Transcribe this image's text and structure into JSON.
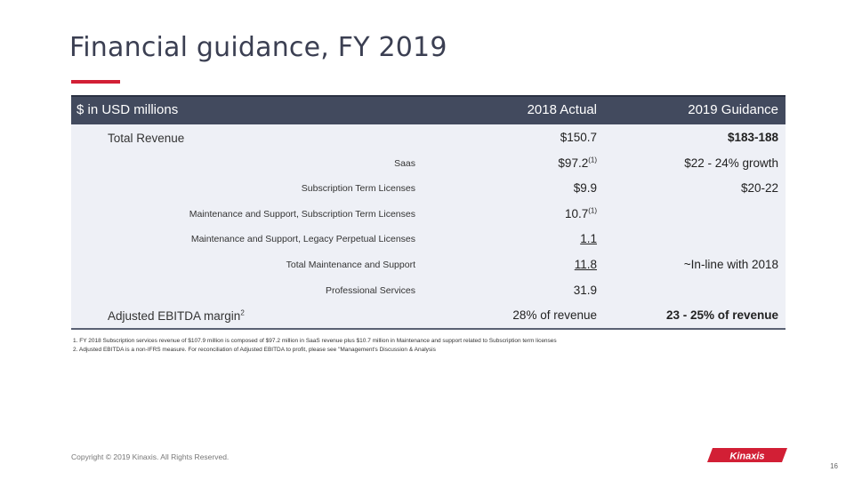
{
  "slide": {
    "title": "Financial guidance, FY 2019",
    "accent_color": "#d21f35"
  },
  "table": {
    "headers": {
      "label": "$ in USD millions",
      "actual": "2018 Actual",
      "guidance": "2019 Guidance"
    },
    "rows": [
      {
        "label": "Total Revenue",
        "actual": "$150.7",
        "guidance": "$183-188"
      },
      {
        "label": "Saas",
        "actual": "$97.2",
        "actual_note": "(1)",
        "guidance": "$22 - 24% growth"
      },
      {
        "label": "Subscription Term Licenses",
        "actual": "$9.9",
        "guidance": "$20-22"
      },
      {
        "label": "Maintenance and Support, Subscription Term Licenses",
        "actual": "10.7",
        "actual_note": "(1)",
        "guidance": ""
      },
      {
        "label": "Maintenance and Support, Legacy Perpetual Licenses",
        "actual": "1.1",
        "guidance": ""
      },
      {
        "label": "Total Maintenance and Support",
        "actual": "11.8",
        "guidance": "~In-line with 2018"
      },
      {
        "label": "Professional Services",
        "actual": "31.9",
        "guidance": ""
      },
      {
        "label": "Adjusted EBITDA margin",
        "label_note": "2",
        "actual": "28% of revenue",
        "guidance": "23 - 25% of revenue"
      }
    ]
  },
  "footnotes": [
    "1. FY 2018 Subscription services revenue of $107.9 million is composed of $97.2 million in SaaS revenue plus $10.7 million in Maintenance and support related to Subscription term licenses",
    "2. Adjusted EBITDA is a non-IFRS measure. For reconciliation of Adjusted EBITDA to profit, please see \"Management's Discussion & Analysis"
  ],
  "footer": {
    "copyright": "Copyright © 2019 Kinaxis. All Rights Reserved.",
    "logo_text": "Kinaxis",
    "page_number": "16"
  }
}
